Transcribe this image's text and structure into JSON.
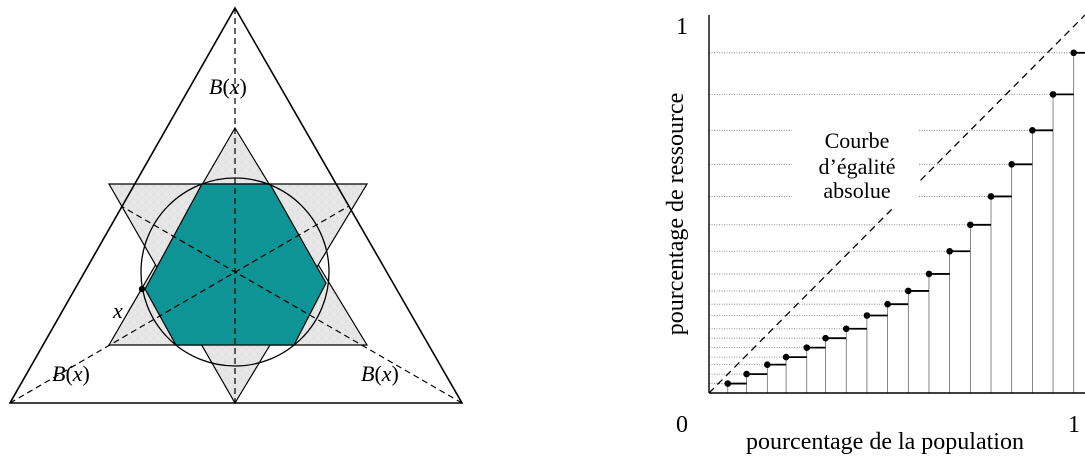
{
  "left_diagram": {
    "labels": {
      "b_top": [
        "B",
        "(",
        "x",
        ")"
      ],
      "b_left": [
        "B",
        "(",
        "x",
        ")"
      ],
      "b_right": [
        "B",
        "(",
        "x",
        ")"
      ],
      "x": "x"
    },
    "colors": {
      "hexagon_fill": "#0e9495",
      "star_fill": "#e8e8e8",
      "stroke": "#000000"
    }
  },
  "right_chart": {
    "ylabel": "pourcentage de ressource",
    "xlabel": "pourcentage de la population",
    "x_tick_end": "1",
    "y_tick_zero": "0",
    "y_tick_end": "1",
    "annotation": [
      "Courbe",
      "d’égalité",
      "absolue"
    ],
    "chart_data": {
      "type": "line",
      "xlim": [
        0,
        1
      ],
      "ylim": [
        0,
        1
      ],
      "series": [
        {
          "kind": "diagonal",
          "x": [
            0,
            1
          ],
          "y": [
            0,
            1
          ]
        },
        {
          "kind": "step",
          "x": [
            0.05,
            0.1,
            0.155,
            0.205,
            0.26,
            0.31,
            0.365,
            0.42,
            0.475,
            0.53,
            0.585,
            0.64,
            0.695,
            0.75,
            0.805,
            0.86,
            0.915,
            0.97
          ],
          "y": [
            0.025,
            0.05,
            0.075,
            0.095,
            0.12,
            0.145,
            0.17,
            0.205,
            0.235,
            0.27,
            0.315,
            0.375,
            0.445,
            0.52,
            0.605,
            0.695,
            0.79,
            0.9
          ]
        }
      ]
    },
    "colors": {
      "line": "#000000",
      "dotted": "#777777"
    }
  }
}
